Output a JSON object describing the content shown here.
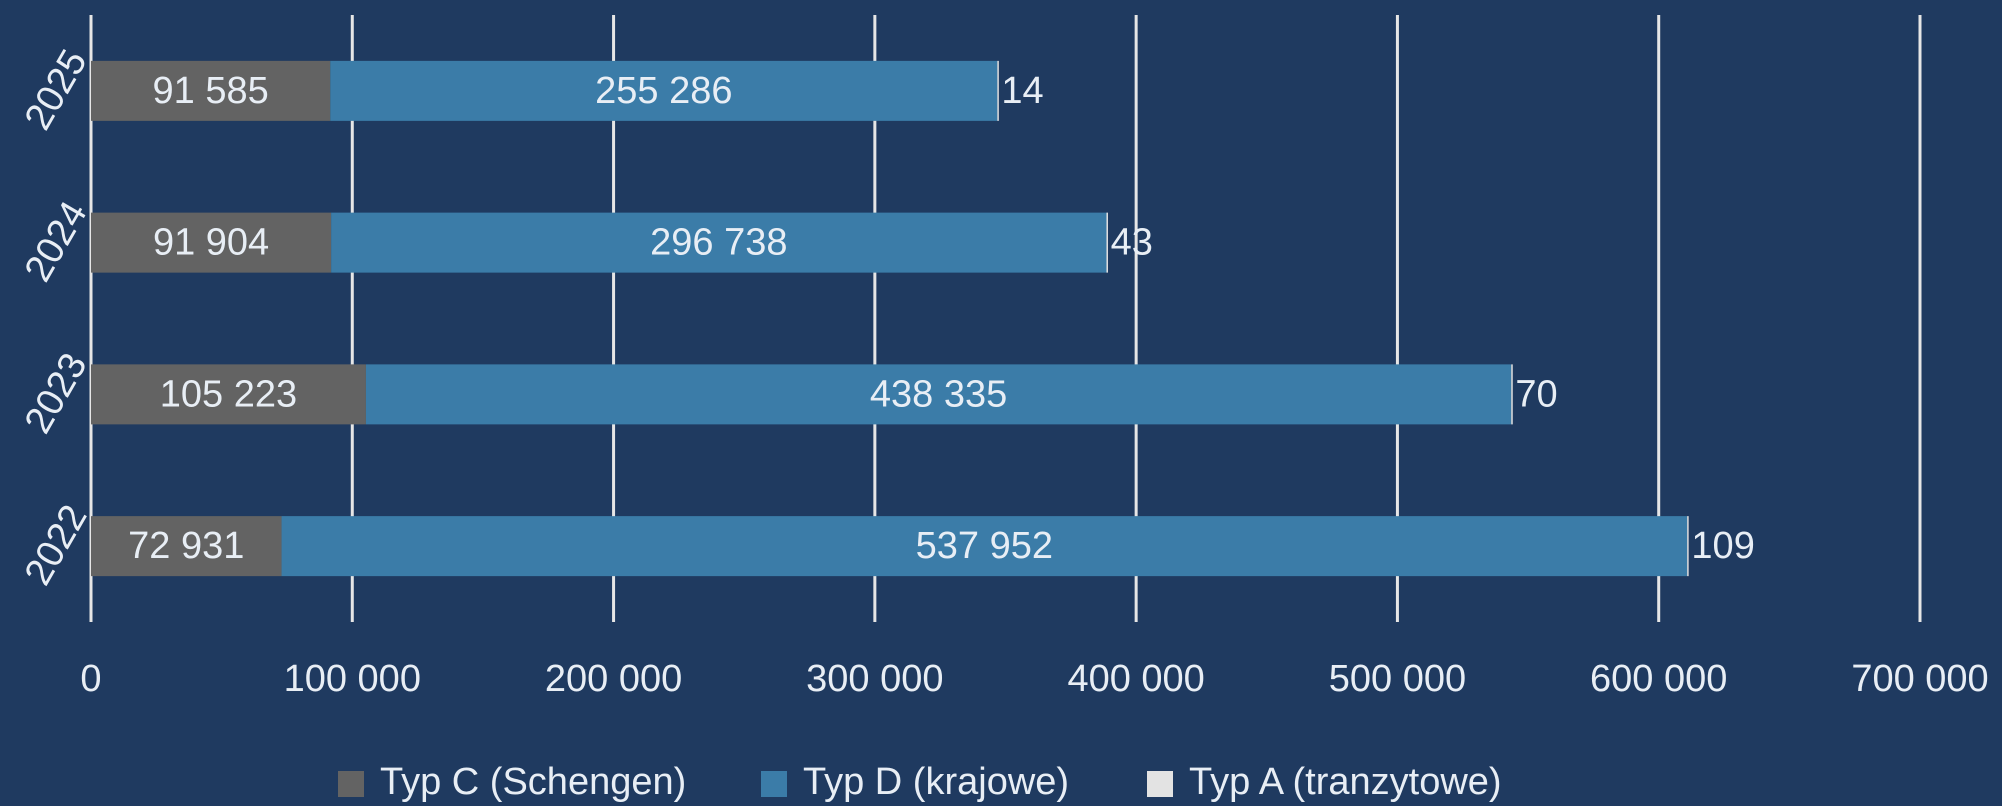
{
  "chart_data": {
    "type": "stacked-bar-horizontal",
    "categories": [
      "2025",
      "2024",
      "2023",
      "2022"
    ],
    "series": [
      {
        "name": "Typ C (Schengen)",
        "color": "#636363",
        "values": [
          91585,
          91904,
          105223,
          72931
        ],
        "value_labels": [
          "91 585",
          "91 904",
          "105 223",
          "72 931"
        ]
      },
      {
        "name": "Typ D (krajowe)",
        "color": "#3b7ca8",
        "values": [
          255286,
          296738,
          438335,
          537952
        ],
        "value_labels": [
          "255 286",
          "296 738",
          "438 335",
          "537 952"
        ]
      },
      {
        "name": "Typ A (tranzytowe)",
        "color": "#e3e3e3",
        "values": [
          14,
          43,
          70,
          109
        ]
      }
    ],
    "xlim": [
      0,
      700000
    ],
    "xticks": [
      0,
      {
        "value": 100000,
        "label": "100 000"
      },
      {
        "value": 200000,
        "label": "200 000"
      },
      {
        "value": 300000,
        "label": "300 000"
      },
      {
        "value": 400000,
        "label": "400 000"
      },
      {
        "value": 500000,
        "label": "500 000"
      },
      {
        "value": 600000,
        "label": "600 000"
      },
      {
        "value": 700000,
        "label": "700 000"
      }
    ],
    "grid": true,
    "legend": "bottom"
  }
}
